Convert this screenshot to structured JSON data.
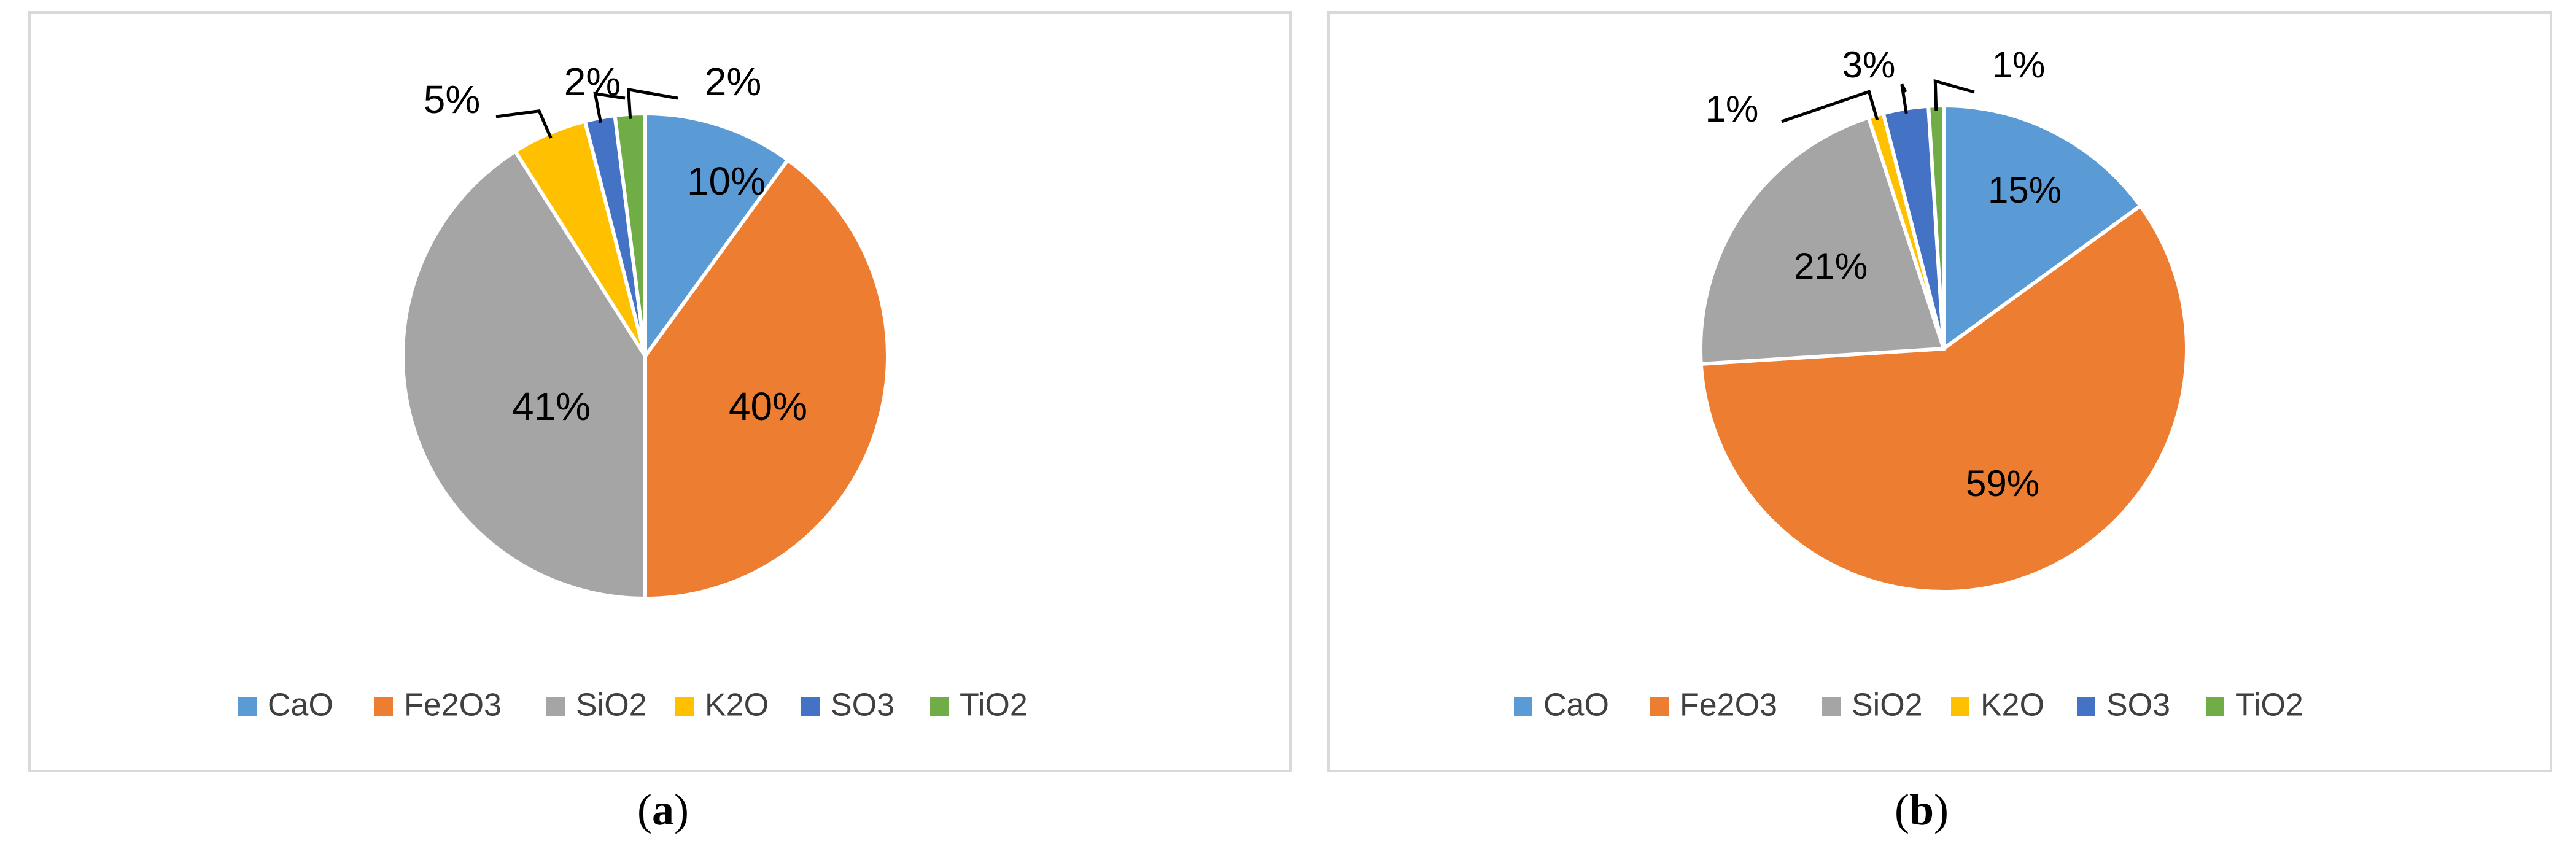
{
  "chart_data": [
    {
      "type": "pie",
      "categories": [
        "CaO",
        "Fe2O3",
        "SiO2",
        "K2O",
        "SO3",
        "TiO2"
      ],
      "values": [
        10,
        40,
        41,
        5,
        2,
        2
      ],
      "labels": [
        "10%",
        "40%",
        "41%",
        "5%",
        "2%",
        "2%"
      ],
      "colors": [
        "#5b9bd5",
        "#ed7d31",
        "#a5a5a5",
        "#ffc000",
        "#4472c4",
        "#70ad47"
      ],
      "legend_position": "bottom",
      "caption_letter": "a"
    },
    {
      "type": "pie",
      "categories": [
        "CaO",
        "Fe2O3",
        "SiO2",
        "K2O",
        "SO3",
        "TiO2"
      ],
      "values": [
        15,
        59,
        21,
        1,
        3,
        1
      ],
      "labels": [
        "15%",
        "59%",
        "21%",
        "1%",
        "3%",
        "1%"
      ],
      "colors": [
        "#5b9bd5",
        "#ed7d31",
        "#a5a5a5",
        "#ffc000",
        "#4472c4",
        "#70ad47"
      ],
      "legend_position": "bottom",
      "caption_letter": "b"
    }
  ],
  "captions": {
    "a": {
      "open": "(",
      "letter": "a",
      "close": ")"
    },
    "b": {
      "open": "(",
      "letter": "b",
      "close": ")"
    }
  }
}
